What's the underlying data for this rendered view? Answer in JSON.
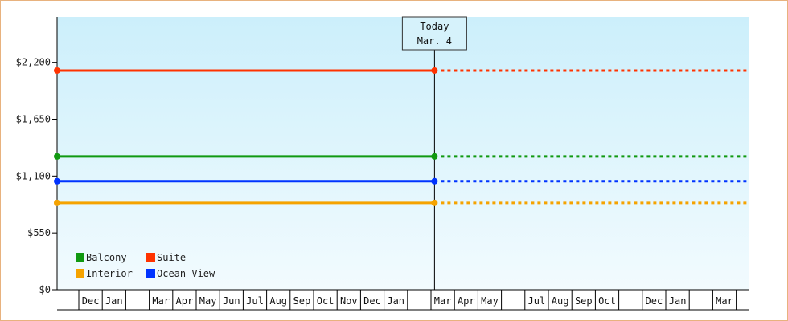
{
  "chart_data": {
    "type": "line",
    "title": "",
    "xlabel": "",
    "ylabel": "",
    "ylim": [
      0,
      2640
    ],
    "yticks": [
      {
        "value": 0,
        "label": "$0"
      },
      {
        "value": 550,
        "label": "$550"
      },
      {
        "value": 1100,
        "label": "$1,100"
      },
      {
        "value": 1650,
        "label": "$1,650"
      },
      {
        "value": 2200,
        "label": "$2,200"
      }
    ],
    "x_months": [
      "",
      "Dec",
      "Jan",
      "",
      "Mar",
      "Apr",
      "May",
      "Jun",
      "Jul",
      "Aug",
      "Sep",
      "Oct",
      "Nov",
      "Dec",
      "Jan",
      "",
      "Mar",
      "Apr",
      "May",
      "",
      "Jul",
      "Aug",
      "Sep",
      "Oct",
      "",
      "Dec",
      "Jan",
      "",
      "Mar",
      ""
    ],
    "today": {
      "line1": "Today",
      "line2": "Mar. 4",
      "month_index": 16.15
    },
    "series": [
      {
        "name": "Suite",
        "color": "#ff3300",
        "value": 2120
      },
      {
        "name": "Balcony",
        "color": "#119911",
        "value": 1290
      },
      {
        "name": "Ocean View",
        "color": "#0033ff",
        "value": 1050
      },
      {
        "name": "Interior",
        "color": "#f5a300",
        "value": 840
      }
    ],
    "legend": {
      "position": "bottom-left",
      "rows": [
        [
          {
            "name": "Balcony",
            "color": "#119911"
          },
          {
            "name": "Suite",
            "color": "#ff3300"
          }
        ],
        [
          {
            "name": "Interior",
            "color": "#f5a300"
          },
          {
            "name": "Ocean View",
            "color": "#0033ff"
          }
        ]
      ]
    },
    "grid": false,
    "background_gradient": [
      "#cceffb",
      "#f2fbfe"
    ]
  }
}
